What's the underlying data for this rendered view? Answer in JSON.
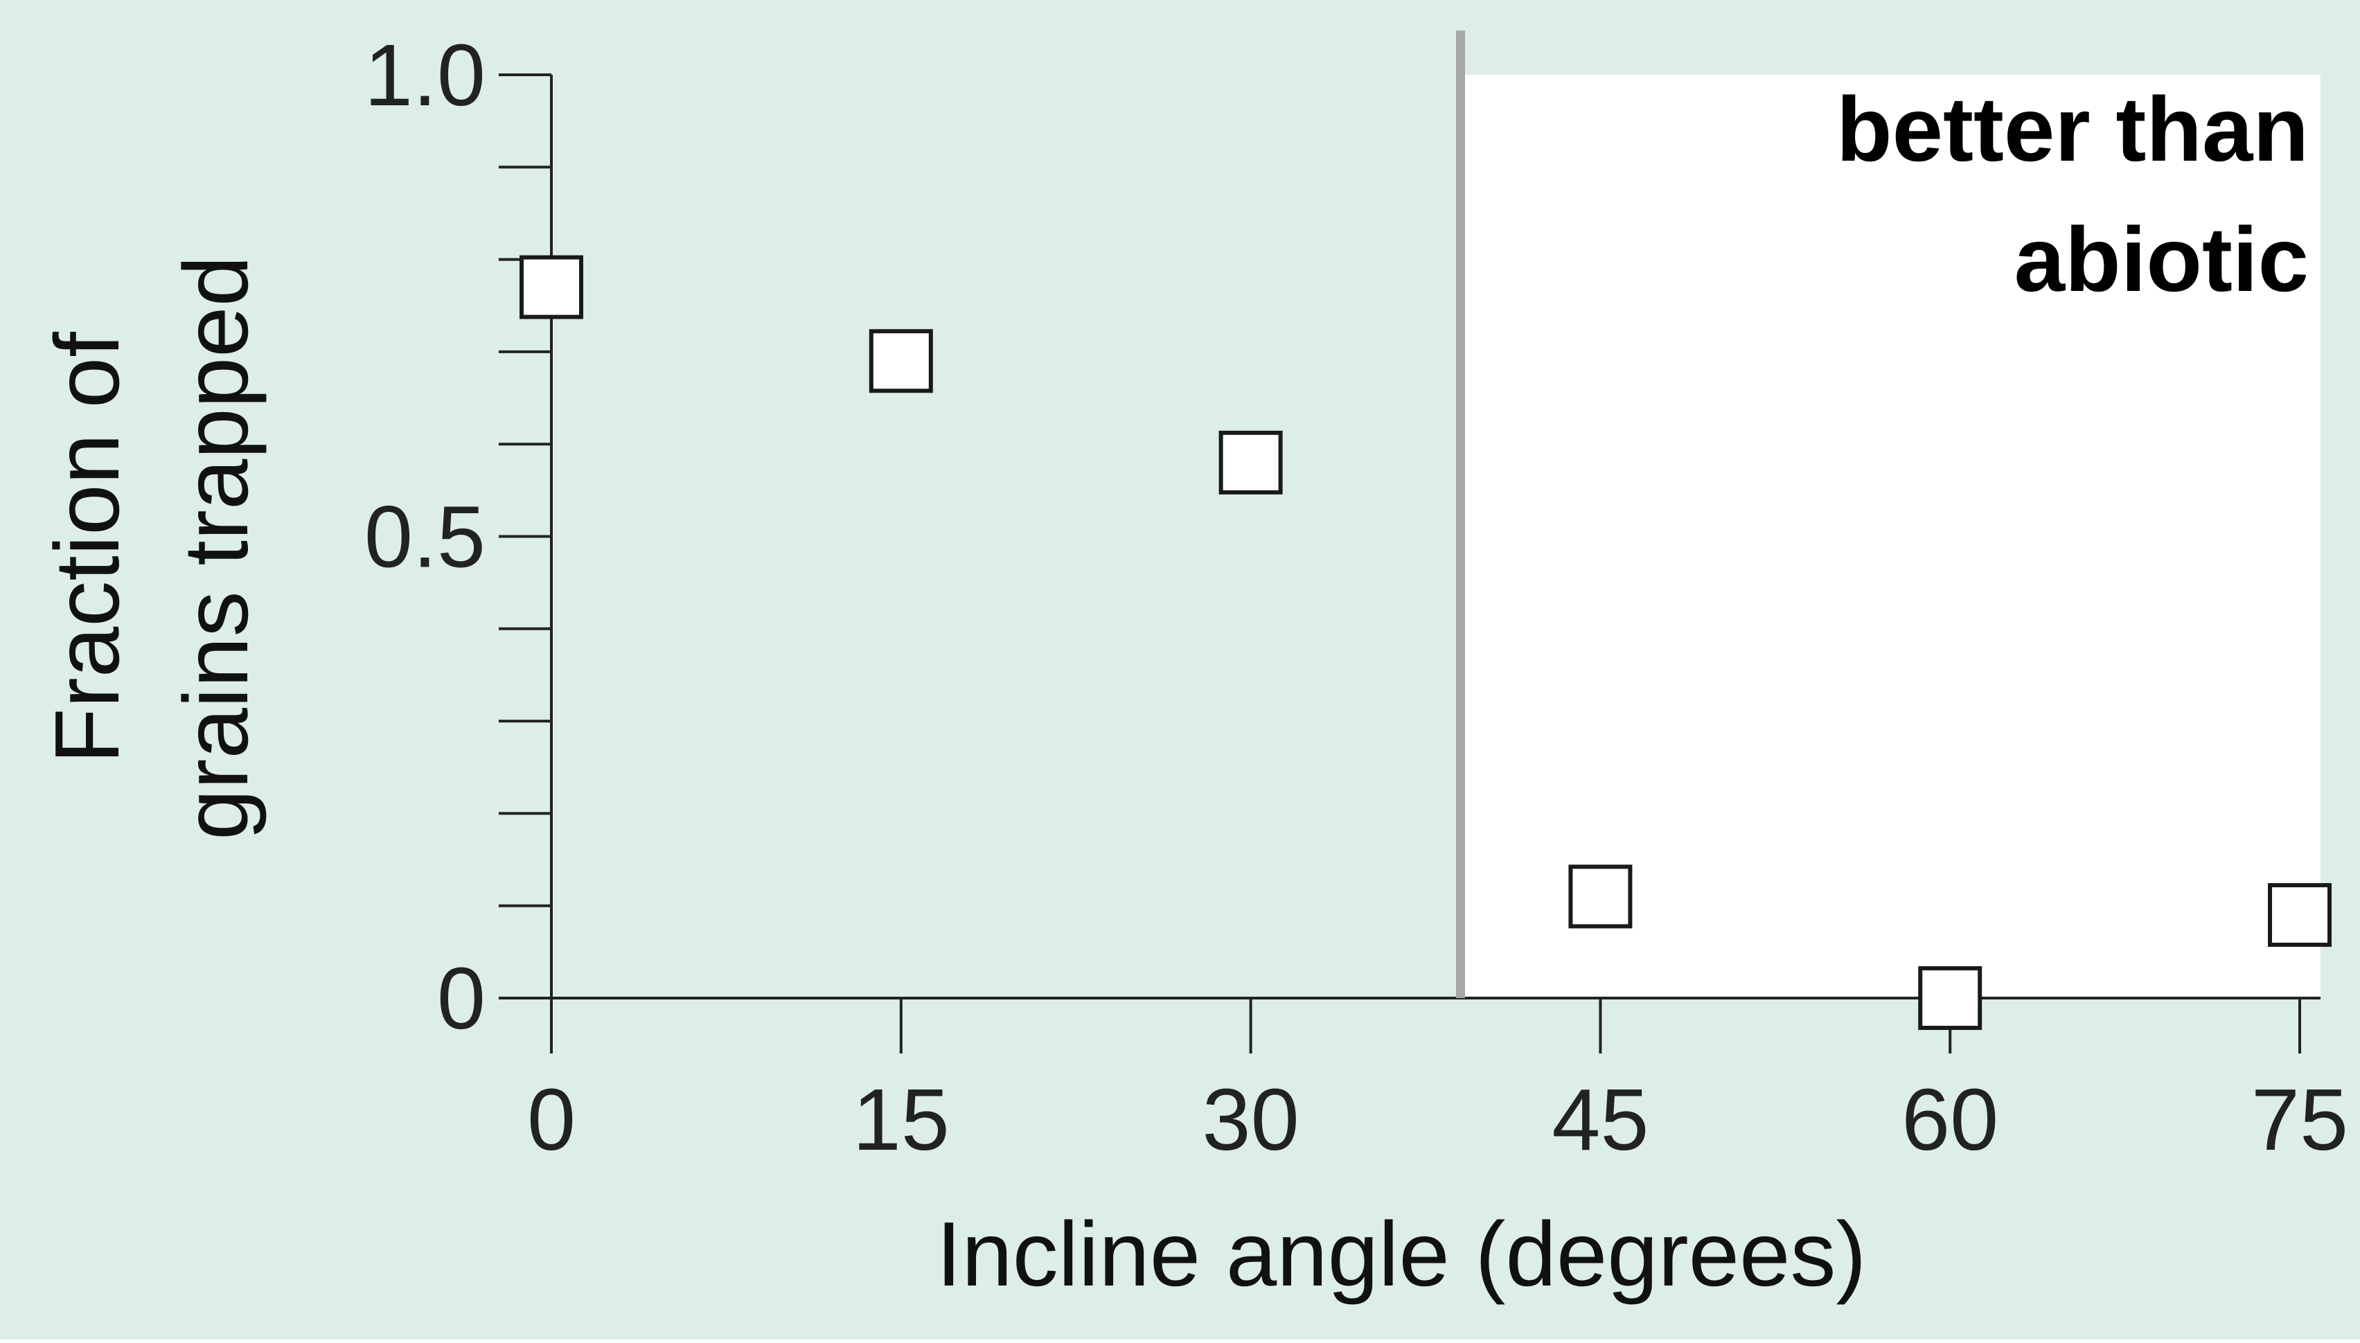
{
  "chart_data": {
    "type": "scatter",
    "xlabel": "Incline angle (degrees)",
    "ylabel_lines": [
      "Fraction of",
      "grains trapped"
    ],
    "xlim": [
      0,
      75
    ],
    "ylim": [
      0,
      1.0
    ],
    "x_ticks": [
      0,
      15,
      30,
      45,
      60,
      75
    ],
    "x_tick_labels": [
      "0",
      "15",
      "30",
      "45",
      "60",
      "75"
    ],
    "y_ticks": [
      0,
      0.5,
      1.0
    ],
    "y_tick_labels": [
      "0",
      "0.5",
      "1.0"
    ],
    "y_minor_step": 0.1,
    "grid": false,
    "threshold_x": 39,
    "region_label_lines": [
      "better than",
      "abiotic"
    ],
    "series": [
      {
        "marker": "open-square",
        "points": [
          {
            "x": 0,
            "y": 0.77
          },
          {
            "x": 15,
            "y": 0.69
          },
          {
            "x": 30,
            "y": 0.58
          },
          {
            "x": 45,
            "y": 0.11
          },
          {
            "x": 60,
            "y": 0.0
          },
          {
            "x": 75,
            "y": 0.09
          }
        ]
      }
    ],
    "colors": {
      "background": "#dceee6",
      "region": "#ffffff",
      "threshold": "#a7a7a7",
      "axis": "#222222",
      "marker_fill": "#ffffff",
      "marker_stroke": "#1a1a1a"
    }
  }
}
